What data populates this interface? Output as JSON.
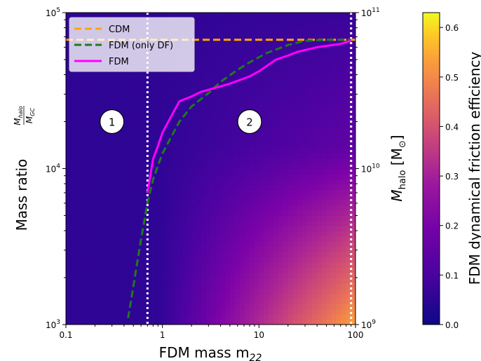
{
  "chart_data": {
    "type": "heatmap",
    "xlabel": "FDM mass m",
    "xlabel_sub": "22",
    "ylabel": "Mass ratio",
    "ylabel_frac_num": "M",
    "ylabel_frac_num_sub": "halo",
    "ylabel_frac_den": "M",
    "ylabel_frac_den_sub": "GC",
    "ylabel_right": "M",
    "ylabel_right_sub": "halo",
    "ylabel_right_unit": "[M",
    "ylabel_right_unit_sub": "⊙",
    "ylabel_right_close": "]",
    "colorbar_label": "FDM dynamical friction efficiency",
    "xlim": [
      0.1,
      100
    ],
    "ylim": [
      1000,
      100000
    ],
    "y_right_lim": [
      1000000000,
      100000000000
    ],
    "xscale": "log",
    "yscale": "log",
    "x_ticks": [
      {
        "value": 0.1,
        "base": "10",
        "exp": "-1",
        "label": "0.1"
      },
      {
        "value": 1,
        "label": "1"
      },
      {
        "value": 10,
        "label": "10"
      },
      {
        "value": 100,
        "label": "100"
      }
    ],
    "y_ticks": [
      {
        "value": 1000,
        "base": "10",
        "exp": "3"
      },
      {
        "value": 10000,
        "base": "10",
        "exp": "4"
      },
      {
        "value": 100000,
        "base": "10",
        "exp": "5"
      }
    ],
    "y_right_ticks": [
      {
        "value": 1000,
        "base": "10",
        "exp": "9"
      },
      {
        "value": 10000,
        "base": "10",
        "exp": "10"
      },
      {
        "value": 100000,
        "base": "10",
        "exp": "11"
      }
    ],
    "colorbar": {
      "min": 0.0,
      "max": 0.63,
      "ticks": [
        "0.0",
        "0.1",
        "0.2",
        "0.3",
        "0.4",
        "0.5",
        "0.6"
      ],
      "tick_values": [
        0.0,
        0.1,
        0.2,
        0.3,
        0.4,
        0.5,
        0.6
      ],
      "colormap": "plasma"
    },
    "vlines": [
      0.7,
      90
    ],
    "regions": [
      {
        "label": "1",
        "x": 0.3,
        "y": 20000
      },
      {
        "label": "2",
        "x": 8,
        "y": 20000
      }
    ],
    "series": [
      {
        "name": "CDM",
        "color": "#FFA500",
        "style": "dashed",
        "x": [
          0.1,
          100
        ],
        "y": [
          67000,
          67000
        ]
      },
      {
        "name": "FDM (only DF)",
        "color": "#1E7A1E",
        "style": "dashed",
        "x": [
          0.44,
          0.48,
          0.53,
          0.6,
          0.7,
          0.8,
          0.9,
          1.0,
          1.2,
          1.5,
          2.0,
          3.0,
          4.0,
          6.0,
          8.0,
          12.0,
          20.0,
          30.0,
          50.0,
          70.0,
          90.0
        ],
        "y": [
          1100,
          1500,
          2200,
          3500,
          6000,
          8500,
          10500,
          12500,
          15500,
          20000,
          25000,
          30500,
          36000,
          43000,
          48000,
          55000,
          62000,
          66000,
          67000,
          67000,
          67000
        ]
      },
      {
        "name": "FDM",
        "color": "#FF00FF",
        "style": "solid",
        "x": [
          0.7,
          0.8,
          0.9,
          1.0,
          1.2,
          1.5,
          2.0,
          2.5,
          3.0,
          5.0,
          8.0,
          10.0,
          15.0,
          20.0,
          25.0,
          40.0,
          70.0,
          90.0
        ],
        "y": [
          7000,
          11500,
          14000,
          17000,
          21000,
          27000,
          29000,
          31000,
          32000,
          35000,
          39000,
          42000,
          50000,
          53000,
          56000,
          60000,
          63000,
          66000
        ]
      }
    ],
    "legend_position": "upper left"
  }
}
